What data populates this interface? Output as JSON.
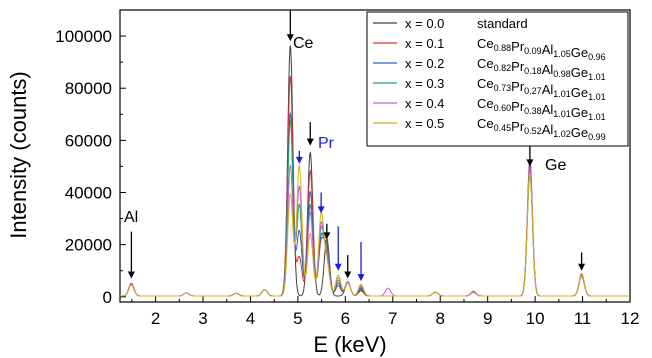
{
  "chart_data": {
    "type": "line",
    "title": "",
    "xlabel": "E (keV)",
    "ylabel": "Intensity (counts)",
    "xlim": [
      1.25,
      12
    ],
    "ylim": [
      -2000,
      110000
    ],
    "xticks": [
      2,
      3,
      4,
      5,
      6,
      7,
      8,
      9,
      10,
      11,
      12
    ],
    "yticks": [
      0,
      20000,
      40000,
      60000,
      80000,
      100000
    ],
    "legend_position": "top-right",
    "series": [
      {
        "name": "x = 0.0",
        "composition_plain": "standard",
        "color": "#404040",
        "peaks": [
          [
            1.49,
            4800
          ],
          [
            2.65,
            1200
          ],
          [
            3.7,
            1000
          ],
          [
            4.3,
            2500
          ],
          [
            4.84,
            96000
          ],
          [
            5.26,
            55000
          ],
          [
            5.61,
            22000
          ],
          [
            6.05,
            5000
          ],
          [
            6.33,
            2000
          ],
          [
            7.9,
            1500
          ],
          [
            8.7,
            1500
          ],
          [
            9.89,
            48000
          ],
          [
            10.98,
            8000
          ]
        ]
      },
      {
        "name": "x = 0.1",
        "composition": [
          [
            "Ce",
            "0.88"
          ],
          [
            "Pr",
            "0.09"
          ],
          [
            "Al",
            "1.05"
          ],
          [
            "Ge",
            "0.96"
          ]
        ],
        "color": "#e03030",
        "peaks": [
          [
            1.49,
            4800
          ],
          [
            2.65,
            1200
          ],
          [
            3.7,
            1000
          ],
          [
            4.3,
            2500
          ],
          [
            4.84,
            84000
          ],
          [
            5.03,
            15000
          ],
          [
            5.26,
            48000
          ],
          [
            5.49,
            20000
          ],
          [
            5.61,
            20000
          ],
          [
            5.85,
            4000
          ],
          [
            6.05,
            5000
          ],
          [
            6.33,
            2500
          ],
          [
            7.9,
            1500
          ],
          [
            8.7,
            1500
          ],
          [
            9.89,
            52000
          ],
          [
            10.98,
            8500
          ]
        ]
      },
      {
        "name": "x = 0.2",
        "composition": [
          [
            "Ce",
            "0.82"
          ],
          [
            "Pr",
            "0.18"
          ],
          [
            "Al",
            "0.98"
          ],
          [
            "Ge",
            "1.01"
          ]
        ],
        "color": "#2a60c8",
        "peaks": [
          [
            1.49,
            4500
          ],
          [
            2.65,
            1200
          ],
          [
            3.7,
            1000
          ],
          [
            4.3,
            2500
          ],
          [
            4.84,
            70000
          ],
          [
            5.03,
            25000
          ],
          [
            5.26,
            40000
          ],
          [
            5.49,
            22000
          ],
          [
            5.61,
            18000
          ],
          [
            5.85,
            5000
          ],
          [
            6.05,
            5500
          ],
          [
            6.33,
            3000
          ],
          [
            7.9,
            1500
          ],
          [
            8.7,
            1500
          ],
          [
            9.89,
            50000
          ],
          [
            10.98,
            8000
          ]
        ]
      },
      {
        "name": "x = 0.3",
        "composition": [
          [
            "Ce",
            "0.73"
          ],
          [
            "Pr",
            "0.27"
          ],
          [
            "Al",
            "1.01"
          ],
          [
            "Ge",
            "1.01"
          ]
        ],
        "color": "#20a060",
        "peaks": [
          [
            1.49,
            4500
          ],
          [
            2.65,
            1200
          ],
          [
            3.7,
            1000
          ],
          [
            4.3,
            2500
          ],
          [
            4.84,
            67000
          ],
          [
            5.03,
            35000
          ],
          [
            5.26,
            35000
          ],
          [
            5.49,
            25000
          ],
          [
            5.61,
            16000
          ],
          [
            5.85,
            6000
          ],
          [
            6.05,
            5500
          ],
          [
            6.33,
            3500
          ],
          [
            7.9,
            1500
          ],
          [
            8.7,
            1500
          ],
          [
            9.89,
            46000
          ],
          [
            10.98,
            7500
          ]
        ]
      },
      {
        "name": "x = 0.4",
        "composition": [
          [
            "Ce",
            "0.60"
          ],
          [
            "Pr",
            "0.38"
          ],
          [
            "Al",
            "1.01"
          ],
          [
            "Ge",
            "1.01"
          ]
        ],
        "color": "#c060d0",
        "peaks": [
          [
            1.49,
            4500
          ],
          [
            2.65,
            1200
          ],
          [
            3.7,
            1000
          ],
          [
            4.3,
            2500
          ],
          [
            4.84,
            50000
          ],
          [
            5.03,
            42000
          ],
          [
            5.26,
            32000
          ],
          [
            5.49,
            27000
          ],
          [
            5.61,
            14000
          ],
          [
            5.85,
            7000
          ],
          [
            6.05,
            5500
          ],
          [
            6.33,
            4000
          ],
          [
            6.9,
            3000
          ],
          [
            7.9,
            1500
          ],
          [
            8.7,
            1500
          ],
          [
            9.89,
            49000
          ],
          [
            10.98,
            8000
          ]
        ]
      },
      {
        "name": "x = 0.5",
        "composition": [
          [
            "Ce",
            "0.45"
          ],
          [
            "Pr",
            "0.52"
          ],
          [
            "Al",
            "1.02"
          ],
          [
            "Ge",
            "0.99"
          ]
        ],
        "color": "#d4b020",
        "peaks": [
          [
            1.49,
            4200
          ],
          [
            2.65,
            1200
          ],
          [
            3.7,
            1000
          ],
          [
            4.3,
            2500
          ],
          [
            4.84,
            39000
          ],
          [
            5.03,
            50000
          ],
          [
            5.26,
            24000
          ],
          [
            5.49,
            31000
          ],
          [
            5.61,
            12000
          ],
          [
            5.85,
            8000
          ],
          [
            6.05,
            5000
          ],
          [
            6.33,
            4500
          ],
          [
            7.9,
            1500
          ],
          [
            8.7,
            2000
          ],
          [
            9.89,
            47000
          ],
          [
            10.98,
            8000
          ]
        ]
      }
    ],
    "annotations": [
      {
        "label": "Al",
        "x": 1.49,
        "arrow_from": 25000,
        "arrow_to": 7000,
        "arrow_color": "#000000"
      },
      {
        "label": "Ce",
        "x": 4.84,
        "arrow_from": 110000,
        "arrow_to": 98000,
        "arrow_color": "#000000"
      },
      {
        "label": "Pr",
        "label_color": "#1f1fd0"
      },
      {
        "label": "Ge",
        "x": 9.89,
        "arrow_from": 66000,
        "arrow_to": 50000,
        "arrow_color": "#000000"
      }
    ],
    "ce_arrows": [
      [
        5.26,
        67000,
        58000
      ],
      [
        5.61,
        28000,
        22000
      ],
      [
        6.05,
        16000,
        7000
      ],
      [
        10.98,
        17000,
        10000
      ]
    ],
    "pr_arrows": [
      [
        5.03,
        56000,
        51000
      ],
      [
        5.49,
        40000,
        32000
      ],
      [
        5.85,
        27000,
        10000
      ],
      [
        6.33,
        21000,
        6000
      ]
    ],
    "pr_arrow_color": "#1f1fd0"
  }
}
